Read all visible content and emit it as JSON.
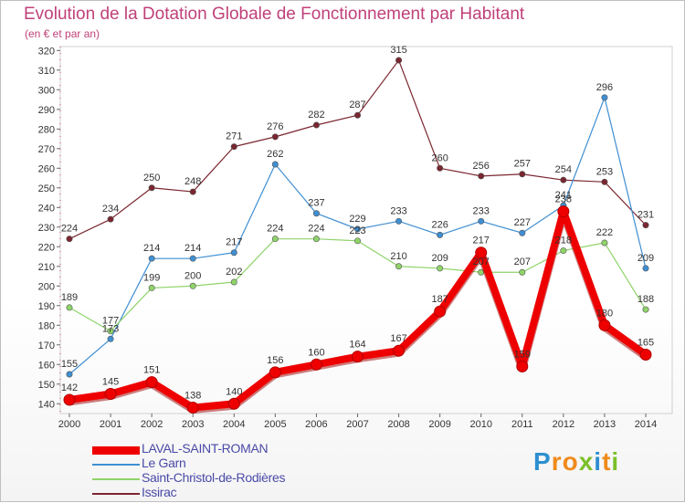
{
  "title": "Evolution de la Dotation Globale de Fonctionnement par Habitant",
  "subtitle": "(en € et par an)",
  "logo": {
    "text": "Proxiti",
    "colors": [
      "#2e8fd0",
      "#f08a1c",
      "#7bbf2a"
    ]
  },
  "chart_data": {
    "type": "line",
    "title": "Evolution de la Dotation Globale de Fonctionnement par Habitant",
    "subtitle": "(en € et par an)",
    "xlabel": "",
    "ylabel": "",
    "x": [
      "2000",
      "2001",
      "2002",
      "2003",
      "2004",
      "2005",
      "2006",
      "2007",
      "2008",
      "2009",
      "2010",
      "2011",
      "2012",
      "2013",
      "2014"
    ],
    "ylim": [
      135,
      322
    ],
    "yticks": [
      140,
      150,
      160,
      170,
      180,
      190,
      200,
      210,
      220,
      230,
      240,
      250,
      260,
      270,
      280,
      290,
      300,
      310,
      320
    ],
    "grid": false,
    "legend_position": "bottom-left",
    "series": [
      {
        "name": "LAVAL-SAINT-ROMAN",
        "color": "#ee0000",
        "values": [
          142,
          145,
          151,
          138,
          140,
          156,
          160,
          164,
          167,
          187,
          217,
          159,
          238,
          180,
          165
        ]
      },
      {
        "name": "Le Garn",
        "color": "#3f8fd2",
        "values": [
          155,
          173,
          214,
          214,
          217,
          262,
          237,
          229,
          233,
          226,
          233,
          227,
          241,
          296,
          209
        ]
      },
      {
        "name": "Saint-Christol-de-Rodières",
        "color": "#8fd36a",
        "values": [
          189,
          177,
          199,
          200,
          202,
          224,
          224,
          223,
          210,
          209,
          207,
          207,
          218,
          222,
          188
        ]
      },
      {
        "name": "Issirac",
        "color": "#7a2630",
        "values": [
          224,
          234,
          250,
          248,
          271,
          276,
          282,
          287,
          315,
          260,
          256,
          257,
          254,
          253,
          231
        ]
      }
    ]
  }
}
